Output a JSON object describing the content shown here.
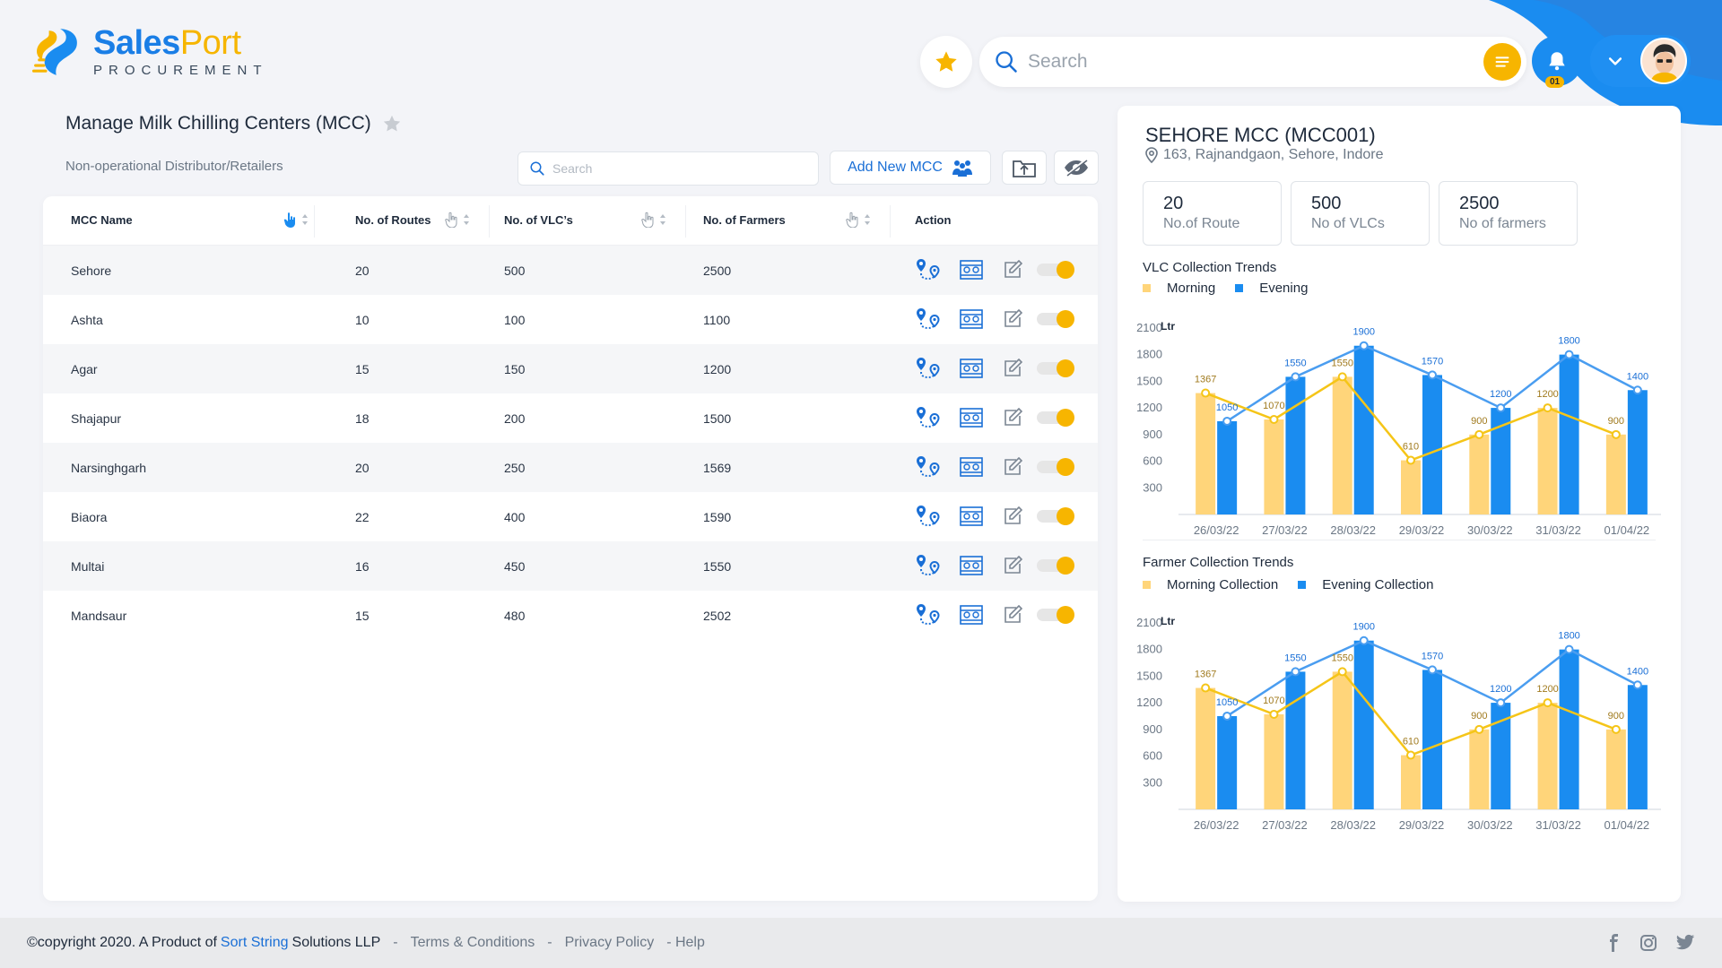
{
  "brand": {
    "name_part1": "Sales",
    "name_part2": "Port",
    "tagline": "PROCUREMENT"
  },
  "header": {
    "search_placeholder": "Search",
    "notification_count": "01"
  },
  "page": {
    "title": "Manage Milk Chilling Centers (MCC)",
    "subtitle": "Non-operational Distributor/Retailers",
    "search_placeholder": "Search",
    "add_button": "Add New MCC"
  },
  "table": {
    "headers": {
      "name": "MCC Name",
      "routes": "No. of Routes",
      "vlcs": "No. of VLC’s",
      "farmers": "No. of Farmers",
      "action": "Action"
    },
    "rows": [
      {
        "name": "Sehore",
        "routes": "20",
        "vlcs": "500",
        "farmers": "2500",
        "active": true
      },
      {
        "name": "Ashta",
        "routes": "10",
        "vlcs": "100",
        "farmers": "1100",
        "active": true
      },
      {
        "name": "Agar",
        "routes": "15",
        "vlcs": "150",
        "farmers": "1200",
        "active": true
      },
      {
        "name": "Shajapur",
        "routes": "18",
        "vlcs": "200",
        "farmers": "1500",
        "active": true
      },
      {
        "name": "Narsinghgarh",
        "routes": "20",
        "vlcs": "250",
        "farmers": "1569",
        "active": true
      },
      {
        "name": "Biaora",
        "routes": "22",
        "vlcs": "400",
        "farmers": "1590",
        "active": true
      },
      {
        "name": "Multai",
        "routes": "16",
        "vlcs": "450",
        "farmers": "1550",
        "active": true
      },
      {
        "name": "Mandsaur",
        "routes": "15",
        "vlcs": "480",
        "farmers": "2502",
        "active": true
      }
    ]
  },
  "side": {
    "title": "SEHORE MCC (MCC001)",
    "address": "163, Rajnandgaon, Sehore, Indore",
    "stats": [
      {
        "value": "20",
        "label": "No.of Route"
      },
      {
        "value": "500",
        "label": "No of VLCs"
      },
      {
        "value": "2500",
        "label": "No of farmers"
      }
    ],
    "chart1": {
      "title": "VLC Collection Trends",
      "legend_morning": "Morning",
      "legend_evening": "Evening"
    },
    "chart2": {
      "title": "Farmer Collection Trends",
      "legend_morning": "Morning Collection",
      "legend_evening": "Evening Collection"
    }
  },
  "footer": {
    "copyright": "©copyright 2020. A Product of",
    "company_link": "Sort String",
    "company_rest": "Solutions LLP",
    "sep": "-",
    "terms": "Terms & Conditions",
    "privacy": "Privacy Policy",
    "help": "- Help"
  },
  "colors": {
    "primary": "#1a8cf0",
    "accent": "#f7b500",
    "morning_bar": "#ffd57a",
    "evening_bar": "#1a8cf0",
    "morning_line": "#f5c518",
    "evening_line": "#4a9df0"
  },
  "chart_data": [
    {
      "type": "bar",
      "title": "VLC Collection Trends",
      "ylabel": "Ltr",
      "yticks": [
        300,
        600,
        900,
        1200,
        1500,
        1800,
        2100
      ],
      "ylim": [
        0,
        2200
      ],
      "categories": [
        "26/03/22",
        "27/03/22",
        "28/03/22",
        "29/03/22",
        "30/03/22",
        "31/03/22",
        "01/04/22"
      ],
      "series": [
        {
          "name": "Morning",
          "values": [
            1367,
            1070,
            1550,
            610,
            900,
            1200,
            900
          ]
        },
        {
          "name": "Evening",
          "values": [
            1050,
            1550,
            1900,
            1570,
            1200,
            1800,
            1400
          ]
        }
      ],
      "value_labels_morning": [
        "1367",
        "1070",
        "1550",
        "610",
        "900",
        "1200",
        "900"
      ],
      "value_labels_evening": [
        "1050",
        "1550",
        "1900",
        "1570",
        "1200",
        "1800",
        "1400"
      ],
      "overlay_lines": true,
      "legend_position": "top-left"
    },
    {
      "type": "bar",
      "title": "Farmer Collection Trends",
      "ylabel": "Ltr",
      "yticks": [
        300,
        600,
        900,
        1200,
        1500,
        1800,
        2100
      ],
      "ylim": [
        0,
        2200
      ],
      "categories": [
        "26/03/22",
        "27/03/22",
        "28/03/22",
        "29/03/22",
        "30/03/22",
        "31/03/22",
        "01/04/22"
      ],
      "series": [
        {
          "name": "Morning Collection",
          "values": [
            1367,
            1070,
            1550,
            610,
            900,
            1200,
            900
          ]
        },
        {
          "name": "Evening Collection",
          "values": [
            1050,
            1550,
            1900,
            1570,
            1200,
            1800,
            1400
          ]
        }
      ],
      "value_labels_morning": [
        "1367",
        "1070",
        "1550",
        "610",
        "900",
        "1200",
        "900"
      ],
      "value_labels_evening": [
        "1050",
        "1550",
        "1900",
        "1570",
        "1200",
        "1800",
        "1400"
      ],
      "overlay_lines": true,
      "legend_position": "top-left"
    }
  ]
}
